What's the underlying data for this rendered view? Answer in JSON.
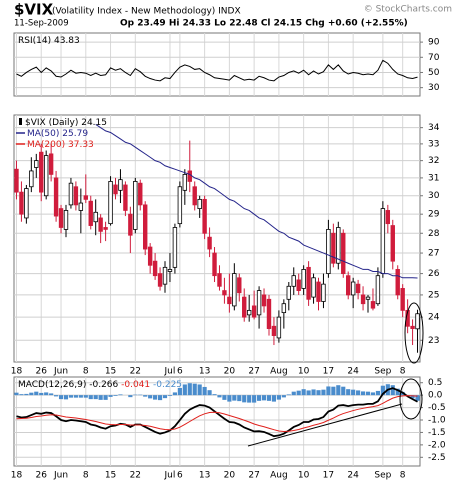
{
  "header": {
    "symbol": "$VIX",
    "name": "(Volatility Index - New Methodology) INDX",
    "date": "11-Sep-2009",
    "quote": "Op 23.49 Hi 24.33 Lo 22.48 Cl 24.15 Chg +0.60 (+2.55%)",
    "credit": "© StockCharts.com"
  },
  "chart_data": [
    {
      "type": "line",
      "title": "RSI(14)",
      "last": 43.83,
      "ylim": [
        19,
        102
      ],
      "yticks": [
        90,
        70,
        50,
        30
      ],
      "grid": true,
      "series": [
        {
          "color": "#000000",
          "values": [
            48,
            45,
            50,
            54,
            57,
            50,
            56,
            52,
            45,
            44,
            48,
            53,
            49,
            50,
            49,
            46,
            49,
            46,
            47,
            56,
            53,
            55,
            50,
            46,
            55,
            51,
            45,
            42,
            40,
            39,
            43,
            42,
            50,
            57,
            60,
            58,
            54,
            55,
            50,
            47,
            43,
            42,
            41,
            40,
            46,
            43,
            40,
            41,
            40,
            45,
            43,
            40,
            39,
            44,
            46,
            50,
            52,
            49,
            53,
            47,
            52,
            48,
            51,
            60,
            54,
            60,
            52,
            48,
            50,
            49,
            47,
            48,
            47,
            53,
            66,
            62,
            54,
            48,
            46,
            43,
            42,
            43.83
          ]
        }
      ]
    },
    {
      "type": "candlestick",
      "title": "$VIX (Daily)",
      "last": 24.15,
      "log_scale": true,
      "grid": true,
      "up_color": "#000000",
      "down_color": "#d01c3c",
      "ylim": [
        22.1,
        34.8
      ],
      "yticks": [
        23,
        24,
        25,
        26,
        27,
        28,
        29,
        30,
        31,
        32,
        33,
        34
      ],
      "categories": [
        "18",
        null,
        null,
        null,
        null,
        "26",
        null,
        null,
        null,
        "Jun",
        null,
        null,
        null,
        null,
        "8",
        null,
        null,
        null,
        null,
        "15",
        null,
        null,
        null,
        null,
        "22",
        null,
        null,
        null,
        null,
        null,
        null,
        "Jul",
        null,
        "6",
        null,
        null,
        null,
        null,
        "13",
        null,
        null,
        null,
        null,
        "20",
        null,
        null,
        null,
        null,
        "27",
        null,
        null,
        null,
        null,
        "Aug",
        null,
        null,
        null,
        null,
        "10",
        null,
        null,
        null,
        null,
        "17",
        null,
        null,
        null,
        null,
        "24",
        null,
        null,
        null,
        null,
        null,
        "Sep",
        null,
        null,
        null,
        "8",
        null,
        null,
        null
      ],
      "ohlc": [
        [
          31.5,
          32,
          29.8,
          30.2
        ],
        [
          30.2,
          30.8,
          28.6,
          29.0
        ],
        [
          28.8,
          30.6,
          28.5,
          30.4
        ],
        [
          30.5,
          32.2,
          30.2,
          31.4
        ],
        [
          31.6,
          32.4,
          31.0,
          32.0
        ],
        [
          32.5,
          33.0,
          29.7,
          30.2
        ],
        [
          30.0,
          32.6,
          29.8,
          32.3
        ],
        [
          32.4,
          33.0,
          30.8,
          31.2
        ],
        [
          31.0,
          31.4,
          28.6,
          28.9
        ],
        [
          29.3,
          29.5,
          28.0,
          28.3
        ],
        [
          28.2,
          29.5,
          27.8,
          29.2
        ],
        [
          29.5,
          31.0,
          29.3,
          30.7
        ],
        [
          30.5,
          30.8,
          29.2,
          29.5
        ],
        [
          29.2,
          30.4,
          28.0,
          29.6
        ],
        [
          30.0,
          31.2,
          29.6,
          29.8
        ],
        [
          29.7,
          30.0,
          28.2,
          28.4
        ],
        [
          28.6,
          29.8,
          27.9,
          29.1
        ],
        [
          28.8,
          29.0,
          27.5,
          28.1
        ],
        [
          28.3,
          28.6,
          27.6,
          28.2
        ],
        [
          28.5,
          31.1,
          28.4,
          30.8
        ],
        [
          30.6,
          31.0,
          29.8,
          30.1
        ],
        [
          30.3,
          31.5,
          29.6,
          30.9
        ],
        [
          30.6,
          30.8,
          28.9,
          29.2
        ],
        [
          29.0,
          29.4,
          27.0,
          27.9
        ],
        [
          28.2,
          31.0,
          28.0,
          30.8
        ],
        [
          30.7,
          30.9,
          29.2,
          29.5
        ],
        [
          29.5,
          29.7,
          26.9,
          27.2
        ],
        [
          27.3,
          27.5,
          26.0,
          26.4
        ],
        [
          26.6,
          27.0,
          25.7,
          25.9
        ],
        [
          26.0,
          26.3,
          25.2,
          25.4
        ],
        [
          25.5,
          26.6,
          25.1,
          26.3
        ],
        [
          26.1,
          27.0,
          25.6,
          26.2
        ],
        [
          26.3,
          28.5,
          26.0,
          28.3
        ],
        [
          28.5,
          30.8,
          28.3,
          30.5
        ],
        [
          30.3,
          31.5,
          29.5,
          31.2
        ],
        [
          31.4,
          33.2,
          30.2,
          30.8
        ],
        [
          30.5,
          30.8,
          29.2,
          29.5
        ],
        [
          29.3,
          30.0,
          28.8,
          29.8
        ],
        [
          29.8,
          30.0,
          27.7,
          28.0
        ],
        [
          27.8,
          28.3,
          26.8,
          27.2
        ],
        [
          27.0,
          27.3,
          25.6,
          25.9
        ],
        [
          26.0,
          26.4,
          25.2,
          25.4
        ],
        [
          25.2,
          25.8,
          24.6,
          25.0
        ],
        [
          24.9,
          26.0,
          24.2,
          24.6
        ],
        [
          24.5,
          26.5,
          24.3,
          26.0
        ],
        [
          25.8,
          26.0,
          24.7,
          25.1
        ],
        [
          24.9,
          25.3,
          23.8,
          24.0
        ],
        [
          24.1,
          25.0,
          23.8,
          24.3
        ],
        [
          24.5,
          25.2,
          23.9,
          24.0
        ],
        [
          24.1,
          25.4,
          23.5,
          25.2
        ],
        [
          25.0,
          25.3,
          24.2,
          24.5
        ],
        [
          24.8,
          25.0,
          23.2,
          23.5
        ],
        [
          23.6,
          24.0,
          22.8,
          23.2
        ],
        [
          23.1,
          24.3,
          22.9,
          24.0
        ],
        [
          24.2,
          24.8,
          23.5,
          24.6
        ],
        [
          24.8,
          25.6,
          24.3,
          25.4
        ],
        [
          25.4,
          26.3,
          25.0,
          25.9
        ],
        [
          25.7,
          26.0,
          25.0,
          25.2
        ],
        [
          25.3,
          26.4,
          25.0,
          26.2
        ],
        [
          26.3,
          26.6,
          24.5,
          24.8
        ],
        [
          24.9,
          26.0,
          24.6,
          25.8
        ],
        [
          25.6,
          25.8,
          24.3,
          24.7
        ],
        [
          24.7,
          26.0,
          24.4,
          25.5
        ],
        [
          26.0,
          28.7,
          25.8,
          28.2
        ],
        [
          28.0,
          28.5,
          26.3,
          26.5
        ],
        [
          26.5,
          28.6,
          26.2,
          28.3
        ],
        [
          28.0,
          28.2,
          25.8,
          26.0
        ],
        [
          25.9,
          26.1,
          24.8,
          25.0
        ],
        [
          25.0,
          25.8,
          24.4,
          25.6
        ],
        [
          25.5,
          25.7,
          24.8,
          25.1
        ],
        [
          25.0,
          25.4,
          24.3,
          24.6
        ],
        [
          24.8,
          25.0,
          24.2,
          24.9
        ],
        [
          24.7,
          25.3,
          24.3,
          24.4
        ],
        [
          24.6,
          26.3,
          24.5,
          25.9
        ],
        [
          26.0,
          29.7,
          25.8,
          29.3
        ],
        [
          29.2,
          29.5,
          28.0,
          28.5
        ],
        [
          28.4,
          28.7,
          26.2,
          26.6
        ],
        [
          26.2,
          26.4,
          24.8,
          25.0
        ],
        [
          25.3,
          25.5,
          24.0,
          24.3
        ],
        [
          24.3,
          24.8,
          23.3,
          23.6
        ],
        [
          23.6,
          23.9,
          22.8,
          23.5
        ],
        [
          23.49,
          24.33,
          22.48,
          24.15
        ]
      ],
      "series": [
        {
          "name": "MA(50)",
          "color": "#24248a",
          "last": 25.79,
          "values": [
            null,
            null,
            null,
            null,
            null,
            null,
            null,
            null,
            null,
            null,
            null,
            null,
            null,
            null,
            null,
            null,
            34.2,
            34.0,
            33.8,
            33.7,
            33.5,
            33.3,
            33.1,
            33.0,
            32.8,
            32.6,
            32.4,
            32.2,
            32.0,
            31.9,
            31.7,
            31.6,
            31.5,
            31.4,
            31.3,
            31.2,
            31.0,
            30.9,
            30.7,
            30.5,
            30.4,
            30.2,
            30.0,
            29.8,
            29.7,
            29.5,
            29.3,
            29.2,
            29.0,
            28.8,
            28.7,
            28.5,
            28.3,
            28.1,
            28.0,
            27.8,
            27.7,
            27.6,
            27.4,
            27.3,
            27.2,
            27.1,
            27.0,
            26.9,
            26.8,
            26.7,
            26.6,
            26.5,
            26.4,
            26.3,
            26.2,
            26.2,
            26.1,
            26.1,
            26.0,
            26.0,
            25.9,
            25.9,
            25.8,
            25.8,
            25.8,
            25.79
          ]
        },
        {
          "name": "MA(200)",
          "color": "#e0201c",
          "last": 37.33
        }
      ]
    },
    {
      "type": "macd",
      "title": "MACD(12,26,9)",
      "grid": true,
      "ylim": [
        -2.85,
        0.73
      ],
      "yticks": [
        0.5,
        {
          "value": 0,
          "label": "0.0"
        },
        -0.5,
        {
          "value": -1,
          "label": "-1.0"
        },
        -1.5,
        {
          "value": -2,
          "label": "-2.0"
        },
        -2.5
      ],
      "categories": [
        "18",
        null,
        null,
        null,
        null,
        "26",
        null,
        null,
        null,
        "Jun",
        null,
        null,
        null,
        null,
        "8",
        null,
        null,
        null,
        null,
        "15",
        null,
        null,
        null,
        null,
        "22",
        null,
        null,
        null,
        null,
        null,
        null,
        "Jul",
        null,
        "6",
        null,
        null,
        null,
        null,
        "13",
        null,
        null,
        null,
        null,
        "20",
        null,
        null,
        null,
        null,
        "27",
        null,
        null,
        null,
        null,
        "Aug",
        null,
        null,
        null,
        null,
        "10",
        null,
        null,
        null,
        null,
        "17",
        null,
        null,
        null,
        null,
        "24",
        null,
        null,
        null,
        null,
        null,
        "Sep",
        null,
        null,
        null,
        "8",
        null,
        null,
        null
      ],
      "series": [
        {
          "color": "#000000",
          "last": -0.266,
          "values": [
            -0.85,
            -0.9,
            -0.88,
            -0.8,
            -0.72,
            -0.75,
            -0.7,
            -0.72,
            -0.85,
            -1.0,
            -1.05,
            -1.0,
            -1.02,
            -1.05,
            -1.08,
            -1.18,
            -1.22,
            -1.3,
            -1.35,
            -1.25,
            -1.22,
            -1.15,
            -1.18,
            -1.28,
            -1.18,
            -1.18,
            -1.28,
            -1.38,
            -1.48,
            -1.55,
            -1.5,
            -1.42,
            -1.25,
            -1.0,
            -0.75,
            -0.58,
            -0.48,
            -0.4,
            -0.42,
            -0.5,
            -0.65,
            -0.8,
            -0.95,
            -1.08,
            -1.1,
            -1.18,
            -1.3,
            -1.38,
            -1.46,
            -1.45,
            -1.48,
            -1.56,
            -1.65,
            -1.62,
            -1.55,
            -1.42,
            -1.28,
            -1.2,
            -1.08,
            -1.08,
            -0.98,
            -0.96,
            -0.88,
            -0.66,
            -0.58,
            -0.42,
            -0.4,
            -0.44,
            -0.4,
            -0.38,
            -0.38,
            -0.35,
            -0.35,
            -0.25,
            0.05,
            0.22,
            0.28,
            0.2,
            0.1,
            -0.05,
            -0.16,
            -0.266
          ]
        },
        {
          "color": "#e0201c",
          "last": -0.041,
          "values": [
            -0.95,
            -0.94,
            -0.93,
            -0.9,
            -0.86,
            -0.84,
            -0.81,
            -0.79,
            -0.8,
            -0.84,
            -0.88,
            -0.9,
            -0.92,
            -0.95,
            -0.98,
            -1.02,
            -1.06,
            -1.11,
            -1.16,
            -1.18,
            -1.19,
            -1.18,
            -1.18,
            -1.2,
            -1.2,
            -1.2,
            -1.22,
            -1.25,
            -1.3,
            -1.35,
            -1.38,
            -1.39,
            -1.36,
            -1.29,
            -1.18,
            -1.06,
            -0.94,
            -0.83,
            -0.75,
            -0.7,
            -0.69,
            -0.71,
            -0.76,
            -0.82,
            -0.88,
            -0.94,
            -1.01,
            -1.08,
            -1.16,
            -1.22,
            -1.27,
            -1.33,
            -1.39,
            -1.44,
            -1.46,
            -1.45,
            -1.42,
            -1.38,
            -1.32,
            -1.27,
            -1.21,
            -1.16,
            -1.1,
            -1.01,
            -0.92,
            -0.82,
            -0.74,
            -0.68,
            -0.62,
            -0.57,
            -0.53,
            -0.49,
            -0.46,
            -0.42,
            -0.33,
            -0.22,
            -0.12,
            -0.06,
            -0.03,
            -0.02,
            -0.03,
            -0.041
          ]
        },
        {
          "color": "#4a8ccc",
          "last": -0.225,
          "bars": true,
          "values": [
            0.1,
            0.04,
            0.05,
            0.1,
            0.14,
            0.09,
            0.11,
            0.07,
            -0.05,
            -0.16,
            -0.17,
            -0.1,
            -0.1,
            -0.1,
            -0.1,
            -0.16,
            -0.16,
            -0.19,
            -0.19,
            -0.07,
            -0.03,
            0.03,
            0.0,
            -0.08,
            0.02,
            0.02,
            -0.06,
            -0.13,
            -0.18,
            -0.2,
            -0.12,
            -0.03,
            0.11,
            0.29,
            0.43,
            0.48,
            0.46,
            0.43,
            0.33,
            0.2,
            0.04,
            -0.09,
            -0.19,
            -0.26,
            -0.22,
            -0.24,
            -0.29,
            -0.3,
            -0.3,
            -0.23,
            -0.21,
            -0.23,
            -0.26,
            -0.18,
            -0.09,
            0.03,
            0.14,
            0.18,
            0.24,
            0.19,
            0.23,
            0.2,
            0.22,
            0.35,
            0.34,
            0.4,
            0.34,
            0.24,
            0.22,
            0.19,
            0.15,
            0.14,
            0.11,
            0.17,
            0.38,
            0.44,
            0.4,
            0.26,
            0.13,
            -0.03,
            -0.13,
            -0.225
          ]
        }
      ]
    }
  ]
}
